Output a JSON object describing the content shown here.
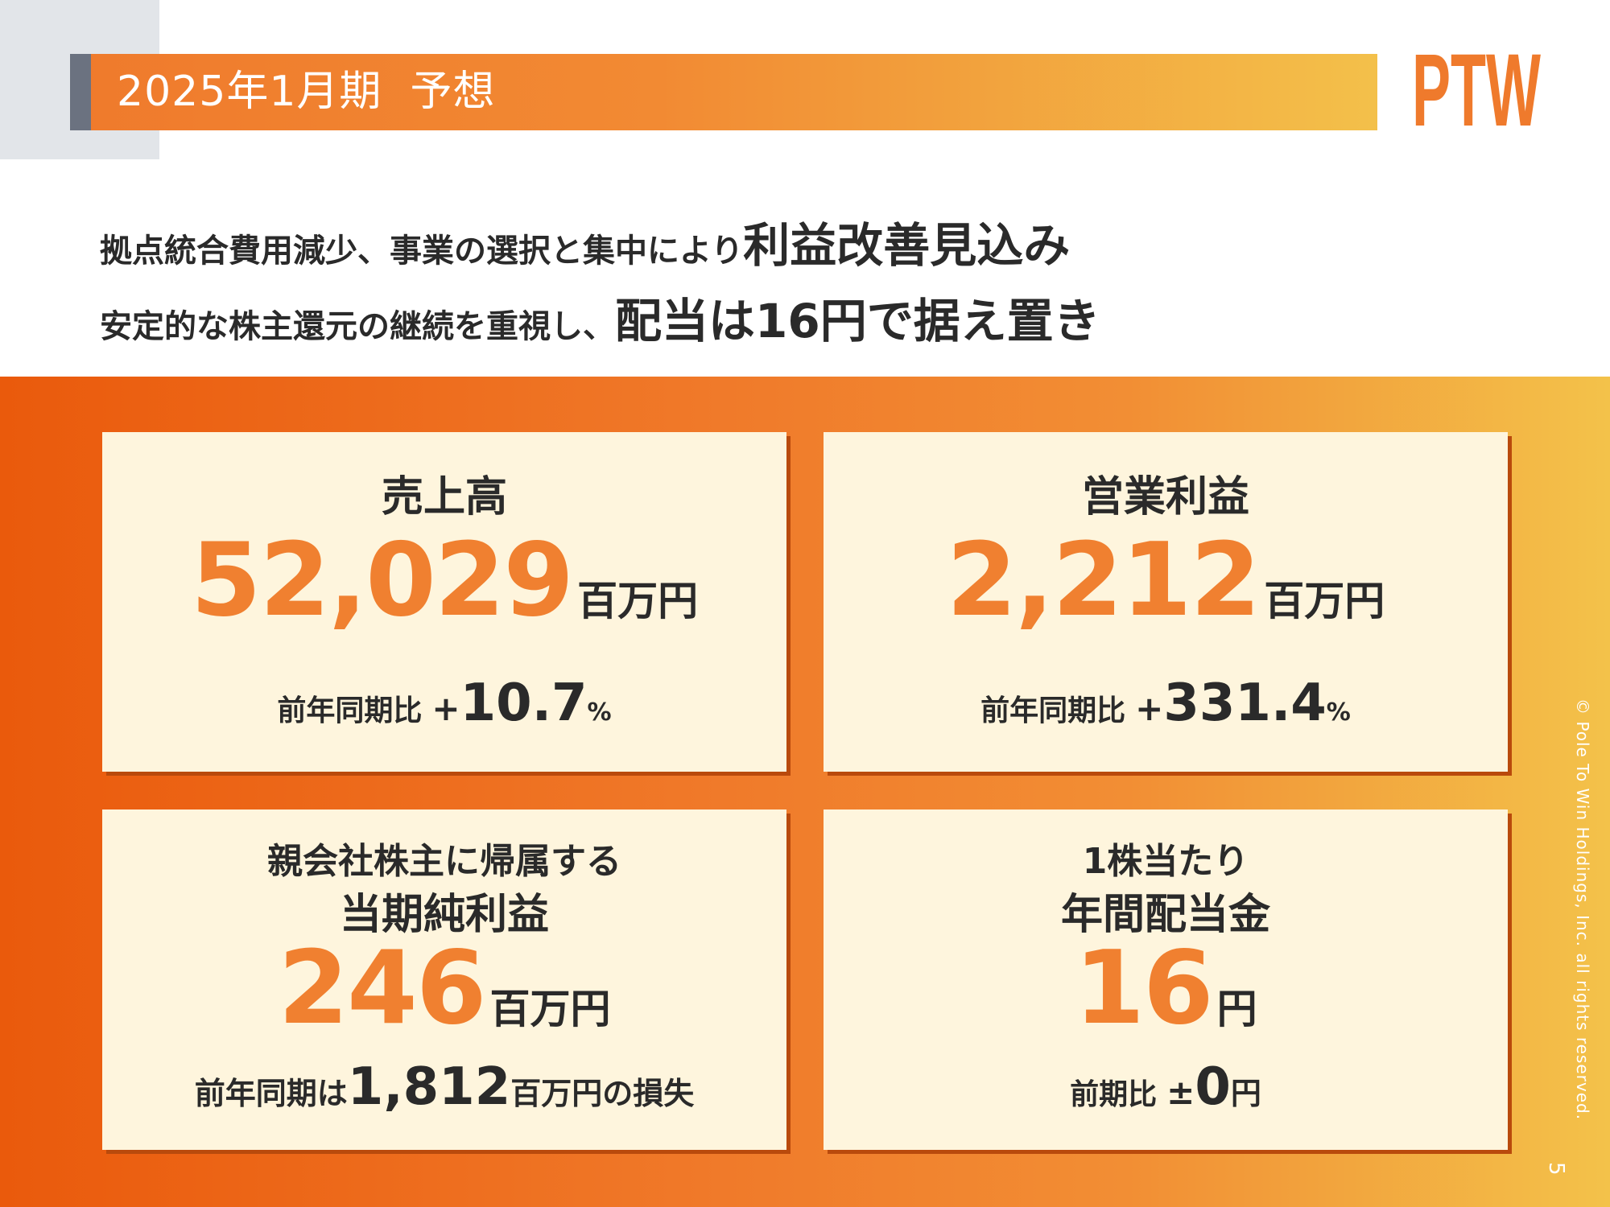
{
  "header": {
    "title": "2025年1月期  予想",
    "logo_text": "PTW"
  },
  "headline": {
    "line1_small": "拠点統合費用減少、事業の選択と集中により",
    "line1_big": "利益改善見込み",
    "line2_small": "安定的な株主還元の継続を重視し、",
    "line2_big": "配当は16円で据え置き"
  },
  "cards": {
    "sales": {
      "title": "売上高",
      "value": "52,029",
      "unit": "百万円",
      "compare_label": "前年同期比",
      "compare_sign": "+",
      "compare_value": "10.7",
      "compare_unit": "%"
    },
    "operating_profit": {
      "title": "営業利益",
      "value": "2,212",
      "unit": "百万円",
      "compare_label": "前年同期比",
      "compare_sign": "+",
      "compare_value": "331.4",
      "compare_unit": "%"
    },
    "net_income": {
      "title_line1": "親会社株主に帰属する",
      "title_line2": "当期純利益",
      "value": "246",
      "unit": "百万円",
      "compare_prefix": "前年同期は",
      "compare_value": "1,812",
      "compare_suffix": "百万円の損失"
    },
    "dividend": {
      "title_line1": "1株当たり",
      "title_line2": "年間配当金",
      "value": "16",
      "unit": "円",
      "compare_label": "前期比",
      "compare_sign": "±",
      "compare_value": "0",
      "compare_unit": "円"
    }
  },
  "footer": {
    "copyright": "© Pole To Win Holdings, Inc. all rights reserved.",
    "page_number": "5"
  },
  "colors": {
    "accent_orange": "#f08030",
    "gradient_start": "#ea5a0c",
    "gradient_end": "#f3c24a",
    "card_bg": "#fef5dd",
    "logo_orange": "#ef7a2c"
  }
}
